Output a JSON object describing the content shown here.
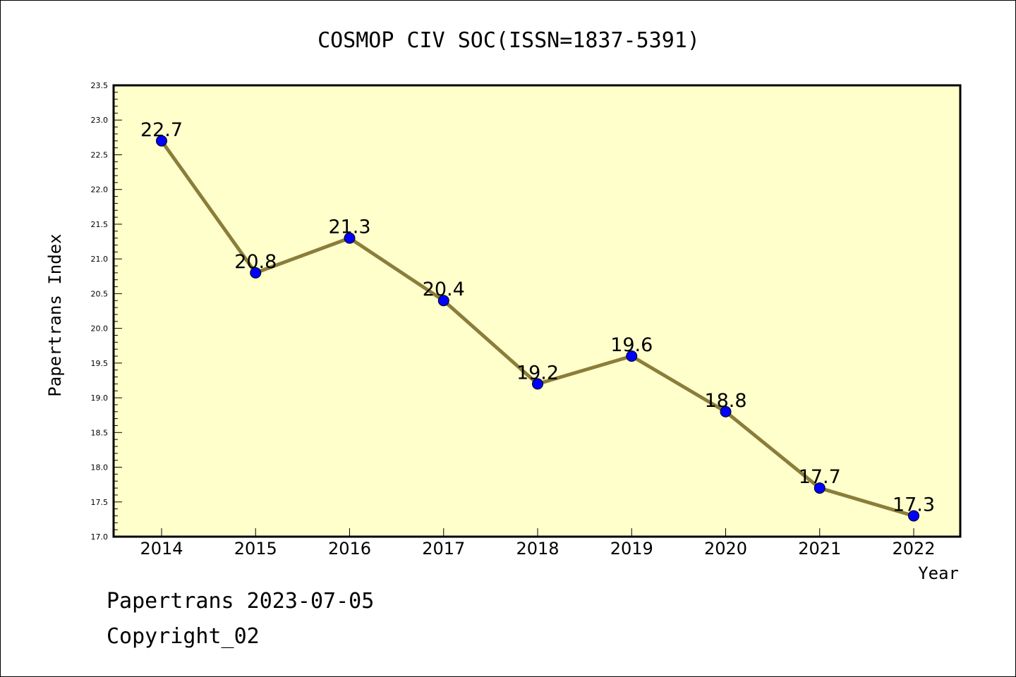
{
  "colors": {
    "plot_background": "#ffffcc",
    "line": "#8b7d3a",
    "marker": "#0000ff",
    "text": "#000000"
  },
  "chart_data": {
    "type": "line",
    "title": "COSMOP CIV SOC(ISSN=1837-5391)",
    "xlabel": "Year",
    "ylabel": "Papertrans Index",
    "categories": [
      "2014",
      "2015",
      "2016",
      "2017",
      "2018",
      "2019",
      "2020",
      "2021",
      "2022"
    ],
    "values": [
      22.7,
      20.8,
      21.3,
      20.4,
      19.2,
      19.6,
      18.8,
      17.7,
      17.3
    ],
    "data_labels": [
      "22.7",
      "20.8",
      "21.3",
      "20.4",
      "19.2",
      "19.6",
      "18.8",
      "17.7",
      "17.3"
    ],
    "ylim": [
      17.0,
      23.5
    ],
    "yticks": [
      "17.0",
      "17.5",
      "18.0",
      "18.5",
      "19.0",
      "19.5",
      "20.0",
      "20.5",
      "21.0",
      "21.5",
      "22.0",
      "22.5",
      "23.0",
      "23.5"
    ],
    "grid": false,
    "legend": "none"
  },
  "footer": {
    "date_line": "Papertrans 2023-07-05",
    "copyright": "Copyright_02"
  }
}
